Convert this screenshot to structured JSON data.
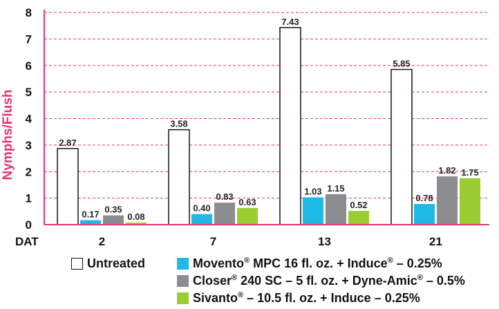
{
  "chart_data": {
    "type": "bar",
    "title": "",
    "xlabel": "DAT",
    "ylabel": "Nymphs/Flush",
    "ylim": [
      0,
      8
    ],
    "yticks": [
      "0",
      "1",
      "2",
      "3",
      "4",
      "5",
      "6",
      "7",
      "8"
    ],
    "grid": "dashed horizontal",
    "categories": [
      "2",
      "7",
      "13",
      "21"
    ],
    "series": [
      {
        "name": "Untreated",
        "color": "#ffffff",
        "values": [
          2.87,
          3.58,
          7.43,
          5.85
        ],
        "labels": [
          "2.87",
          "3.58",
          "7.43",
          "5.85"
        ]
      },
      {
        "name": "Movento® MPC 16 fl. oz. + Induce® – 0.25%",
        "color": "#1fb9e6",
        "values": [
          0.17,
          0.4,
          1.03,
          0.78
        ],
        "labels": [
          "0.17",
          "0.40",
          "1.03",
          "0.78"
        ]
      },
      {
        "name": "Closer® 240 SC – 5 fl. oz. + Dyne-Amic® – 0.5%",
        "color": "#8c8d90",
        "values": [
          0.35,
          0.83,
          1.15,
          1.82
        ],
        "labels": [
          "0.35",
          "0.83",
          "1.15",
          "1.82"
        ]
      },
      {
        "name": "Sivanto® – 10.5 fl. oz. + Induce – 0.25%",
        "color": "#9acd32",
        "values": [
          0.08,
          0.63,
          0.52,
          1.75
        ],
        "labels": [
          "0.08",
          "0.63",
          "0.52",
          "1.75"
        ]
      }
    ],
    "legend_items": [
      {
        "prefix": "Untreated",
        "sup": "",
        "rest": ""
      },
      {
        "prefix": "Movento",
        "sup": "®",
        "rest": " MPC 16 fl. oz. + Induce",
        "sup2": "®",
        "rest2": " – 0.25%"
      },
      {
        "prefix": "Closer",
        "sup": "®",
        "rest": " 240 SC – 5 fl. oz. + Dyne-Amic",
        "sup2": "®",
        "rest2": " – 0.5%"
      },
      {
        "prefix": "Sivanto",
        "sup": "®",
        "rest": " – 10.5 fl. oz. + Induce – 0.25%",
        "sup2": "",
        "rest2": ""
      }
    ],
    "colors": {
      "grid": "#e8336d",
      "axis": "#e8336d",
      "ylabel": "#e8336d",
      "bar_border": "#111111"
    }
  }
}
